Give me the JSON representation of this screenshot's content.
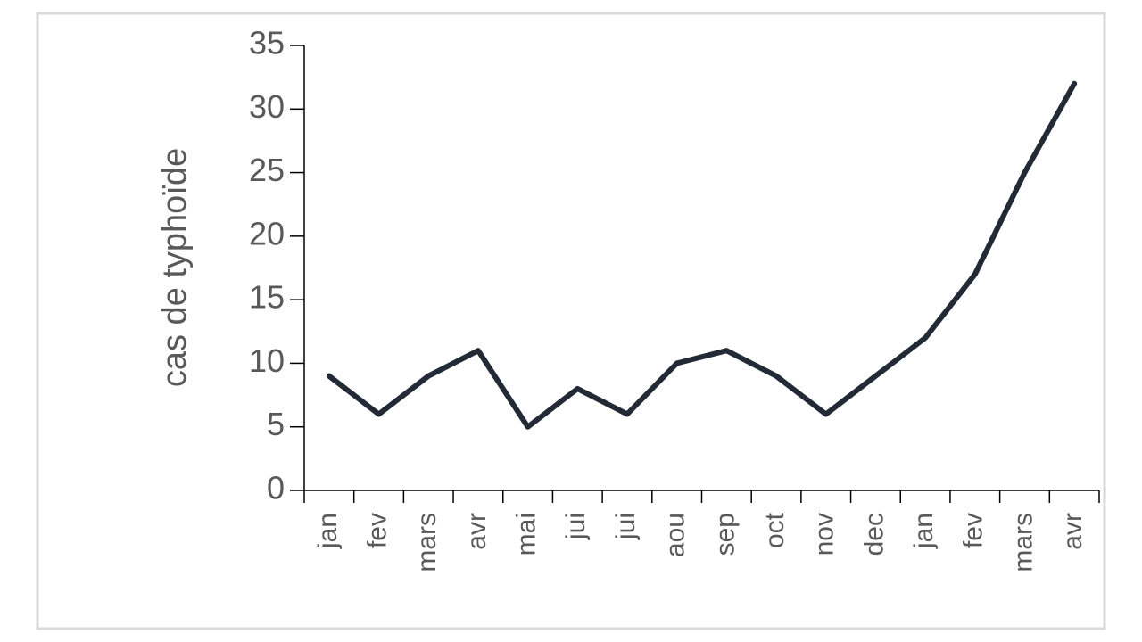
{
  "chart_data": {
    "type": "line",
    "y_label": "cas de typhoïde",
    "categories": [
      "jan",
      "fev",
      "mars",
      "avr",
      "mai",
      "jui",
      "jui",
      "aou",
      "sep",
      "oct",
      "nov",
      "dec",
      "jan",
      "fev",
      "mars",
      "avr"
    ],
    "values": [
      9,
      6,
      9,
      11,
      5,
      8,
      6,
      10,
      11,
      9,
      6,
      9,
      12,
      17,
      25,
      32
    ],
    "color": "#222a35",
    "ylim": [
      0,
      35
    ],
    "yticks": [
      0,
      5,
      10,
      15,
      20,
      25,
      30,
      35
    ],
    "grid": false
  }
}
